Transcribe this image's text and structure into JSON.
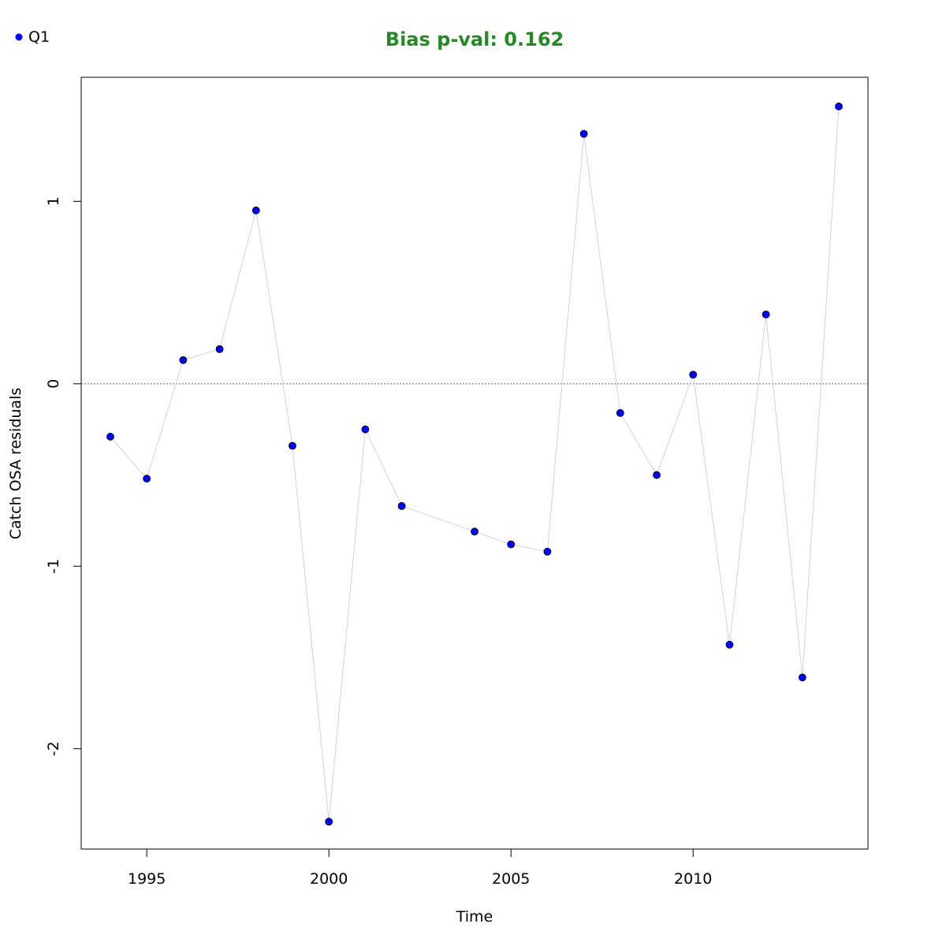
{
  "chart_data": {
    "type": "line",
    "title": "Bias p-val: 0.162",
    "title_color": "#228b22",
    "x_label": "Time",
    "y_label": "Catch OSA residuals",
    "x": [
      1994,
      1995,
      1996,
      1997,
      1998,
      1999,
      2000,
      2001,
      2002,
      2004,
      2005,
      2006,
      2007,
      2008,
      2009,
      2010,
      2011,
      2012,
      2013,
      2014
    ],
    "series": [
      {
        "name": "Q1",
        "color": "#0000ff",
        "line_color": "#d3d3d3",
        "values": [
          -0.29,
          -0.52,
          0.13,
          0.19,
          0.95,
          -0.34,
          -2.4,
          -0.25,
          -0.67,
          -0.81,
          -0.88,
          -0.92,
          1.37,
          -0.16,
          -0.5,
          0.05,
          -1.43,
          0.38,
          -1.61,
          1.52
        ]
      }
    ],
    "xlim": [
      1993.2,
      2014.8
    ],
    "xticks": [
      1995,
      2000,
      2005,
      2010
    ],
    "ylim": [
      -2.55,
      1.68
    ],
    "yticks": [
      -2,
      -1,
      0,
      1
    ],
    "reference_line": 0,
    "legend": "top-left",
    "grid": false
  }
}
